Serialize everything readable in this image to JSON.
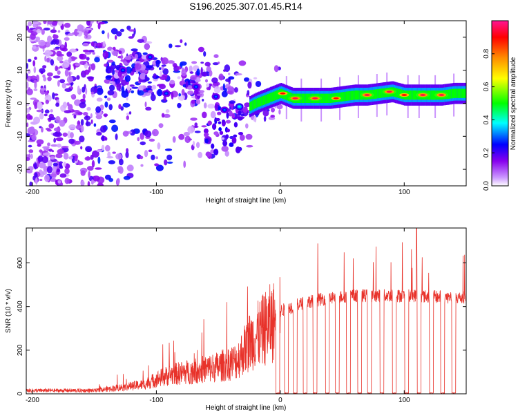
{
  "title": "S196.2025.307.01.45.R14",
  "chart_data": [
    {
      "type": "heatmap",
      "name": "spectrogram",
      "xlabel": "Height of straight line (km)",
      "ylabel": "Frequency (Hz)",
      "xlim": [
        -205,
        150
      ],
      "ylim": [
        -25,
        25
      ],
      "xticks": [
        "-200",
        "-100",
        "0",
        "100"
      ],
      "xtick_values": [
        -200,
        -100,
        0,
        100
      ],
      "yticks": [
        "20",
        "10",
        "0",
        "-10",
        "-20"
      ],
      "ytick_values": [
        20,
        10,
        0,
        -10,
        -20
      ],
      "colorbar": {
        "label": "Normalized spectral amplitude",
        "range": [
          0.0,
          1.0
        ],
        "ticks": [
          "0.0",
          "0.2",
          "0.4",
          "0.6",
          "0.8"
        ],
        "tick_values": [
          0.0,
          0.2,
          0.4,
          0.6,
          0.8
        ],
        "stops": [
          "#ffffff",
          "#cc99ff",
          "#8800ee",
          "#0000ff",
          "#00ffff",
          "#00ff00",
          "#ffff00",
          "#ff8800",
          "#ff0000",
          "#ff1493"
        ]
      },
      "ridge": {
        "description": "frequency of dominant carrier vs height",
        "x": [
          -30,
          -20,
          -10,
          0,
          10,
          20,
          30,
          40,
          50,
          60,
          70,
          80,
          90,
          100,
          110,
          120,
          130,
          140,
          150
        ],
        "y": [
          -2,
          0,
          1.5,
          3,
          1.5,
          1.5,
          1.5,
          1.5,
          2,
          2.5,
          2.5,
          3,
          3.5,
          2.5,
          2.5,
          2.5,
          2.5,
          3,
          3
        ]
      },
      "bright_spots": {
        "x": [
          -127,
          -105,
          -92,
          -68,
          -52,
          -45,
          -33,
          2,
          12,
          28,
          45,
          70,
          88,
          100,
          115,
          130
        ],
        "y": [
          10,
          14,
          3,
          5,
          2,
          -2,
          -1,
          3,
          1.5,
          1.5,
          1.5,
          2.5,
          3.5,
          2.5,
          2.5,
          2.5
        ],
        "amplitude": [
          0.3,
          0.3,
          0.3,
          0.3,
          0.3,
          0.3,
          0.4,
          0.9,
          0.95,
          0.95,
          0.9,
          0.95,
          0.95,
          0.9,
          0.95,
          0.95
        ]
      }
    },
    {
      "type": "line",
      "name": "snr",
      "xlabel": "Height of straight line (km)",
      "ylabel": "SNR (10 * v/v)",
      "xlim": [
        -205,
        150
      ],
      "ylim": [
        0,
        760
      ],
      "xticks": [
        "-200",
        "-100",
        "0",
        "100"
      ],
      "xtick_values": [
        -200,
        -100,
        0,
        100
      ],
      "yticks": [
        "600",
        "400",
        "200",
        "0"
      ],
      "ytick_values": [
        600,
        400,
        200,
        0
      ],
      "color": "#e8322a",
      "envelope": {
        "x": [
          -205,
          -150,
          -130,
          -110,
          -100,
          -90,
          -70,
          -50,
          -35,
          -25,
          -15,
          -10,
          -5,
          0,
          10,
          20,
          30,
          40,
          50,
          60,
          80,
          100,
          110,
          120,
          130,
          140,
          150
        ],
        "y": [
          15,
          15,
          30,
          45,
          70,
          90,
          110,
          130,
          160,
          250,
          300,
          330,
          350,
          380,
          400,
          420,
          430,
          440,
          445,
          450,
          450,
          450,
          450,
          445,
          445,
          440,
          440
        ]
      },
      "peak_max": 760,
      "dropout_x": [
        -2,
        5,
        12,
        20,
        28,
        38,
        46,
        55,
        64,
        72,
        82,
        92,
        102,
        112,
        122,
        131,
        140
      ]
    }
  ]
}
